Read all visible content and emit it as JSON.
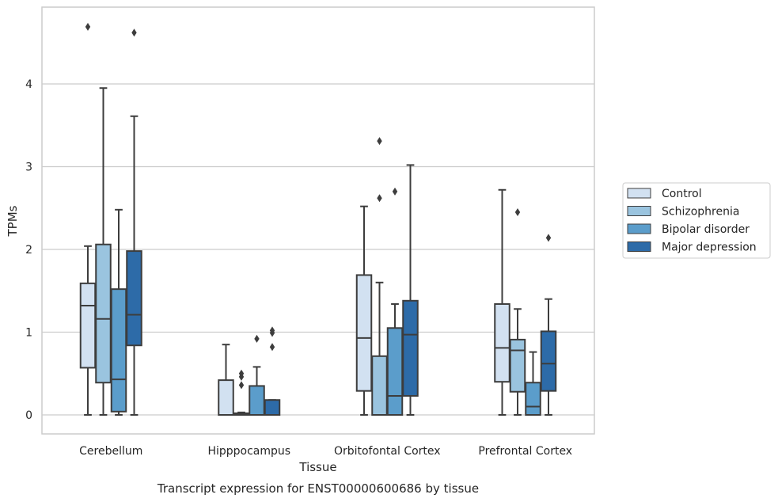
{
  "chart_data": {
    "type": "box",
    "xlabel": "Tissue",
    "ylabel": "TPMs",
    "caption": "Transcript expression for ENST00000600686 by tissue",
    "ylim": [
      -0.22,
      4.92
    ],
    "yticks": [
      0,
      1,
      2,
      3,
      4
    ],
    "grid": "horizontal",
    "legend_position": "right",
    "categories": [
      "Cerebellum",
      "Hipppocampus",
      "Orbitofontal Cortex",
      "Prefrontal Cortex"
    ],
    "series": [
      {
        "name": "Control",
        "color": "#d2e1f1",
        "boxes": [
          {
            "whislo": 0.0,
            "q1": 0.57,
            "med": 1.32,
            "q3": 1.59,
            "whishi": 2.04,
            "fliers": [
              4.69
            ]
          },
          {
            "whislo": 0.0,
            "q1": 0.0,
            "med": 0.0,
            "q3": 0.42,
            "whishi": 0.85,
            "fliers": []
          },
          {
            "whislo": 0.0,
            "q1": 0.29,
            "med": 0.93,
            "q3": 1.69,
            "whishi": 2.52,
            "fliers": []
          },
          {
            "whislo": 0.0,
            "q1": 0.4,
            "med": 0.81,
            "q3": 1.34,
            "whishi": 2.72,
            "fliers": []
          }
        ]
      },
      {
        "name": "Schizophrenia",
        "color": "#9ac4df",
        "boxes": [
          {
            "whislo": 0.0,
            "q1": 0.39,
            "med": 1.16,
            "q3": 2.06,
            "whishi": 3.95,
            "fliers": []
          },
          {
            "whislo": 0.0,
            "q1": 0.0,
            "med": 0.01,
            "q3": 0.02,
            "whishi": 0.03,
            "fliers": [
              0.36,
              0.46,
              0.5
            ]
          },
          {
            "whislo": 0.0,
            "q1": 0.0,
            "med": 0.0,
            "q3": 0.71,
            "whishi": 1.6,
            "fliers": [
              2.62,
              3.31
            ]
          },
          {
            "whislo": 0.0,
            "q1": 0.28,
            "med": 0.78,
            "q3": 0.91,
            "whishi": 1.28,
            "fliers": [
              2.45
            ]
          }
        ]
      },
      {
        "name": "Bipolar disorder",
        "color": "#5b9dcb",
        "boxes": [
          {
            "whislo": 0.0,
            "q1": 0.04,
            "med": 0.43,
            "q3": 1.52,
            "whishi": 2.48,
            "fliers": []
          },
          {
            "whislo": 0.0,
            "q1": 0.0,
            "med": 0.0,
            "q3": 0.35,
            "whishi": 0.58,
            "fliers": [
              0.92
            ]
          },
          {
            "whislo": 0.0,
            "q1": 0.0,
            "med": 0.23,
            "q3": 1.05,
            "whishi": 1.34,
            "fliers": [
              2.7
            ]
          },
          {
            "whislo": 0.0,
            "q1": 0.0,
            "med": 0.1,
            "q3": 0.39,
            "whishi": 0.76,
            "fliers": []
          }
        ]
      },
      {
        "name": "Major depression",
        "color": "#2d6ba8",
        "boxes": [
          {
            "whislo": 0.0,
            "q1": 0.84,
            "med": 1.21,
            "q3": 1.98,
            "whishi": 3.61,
            "fliers": [
              4.62
            ]
          },
          {
            "whislo": 0.0,
            "q1": 0.0,
            "med": 0.0,
            "q3": 0.18,
            "whishi": 0.18,
            "fliers": [
              0.82,
              0.99,
              1.02
            ]
          },
          {
            "whislo": 0.0,
            "q1": 0.23,
            "med": 0.97,
            "q3": 1.38,
            "whishi": 3.02,
            "fliers": []
          },
          {
            "whislo": 0.0,
            "q1": 0.29,
            "med": 0.62,
            "q3": 1.01,
            "whishi": 1.4,
            "fliers": [
              2.14
            ]
          }
        ]
      }
    ]
  }
}
